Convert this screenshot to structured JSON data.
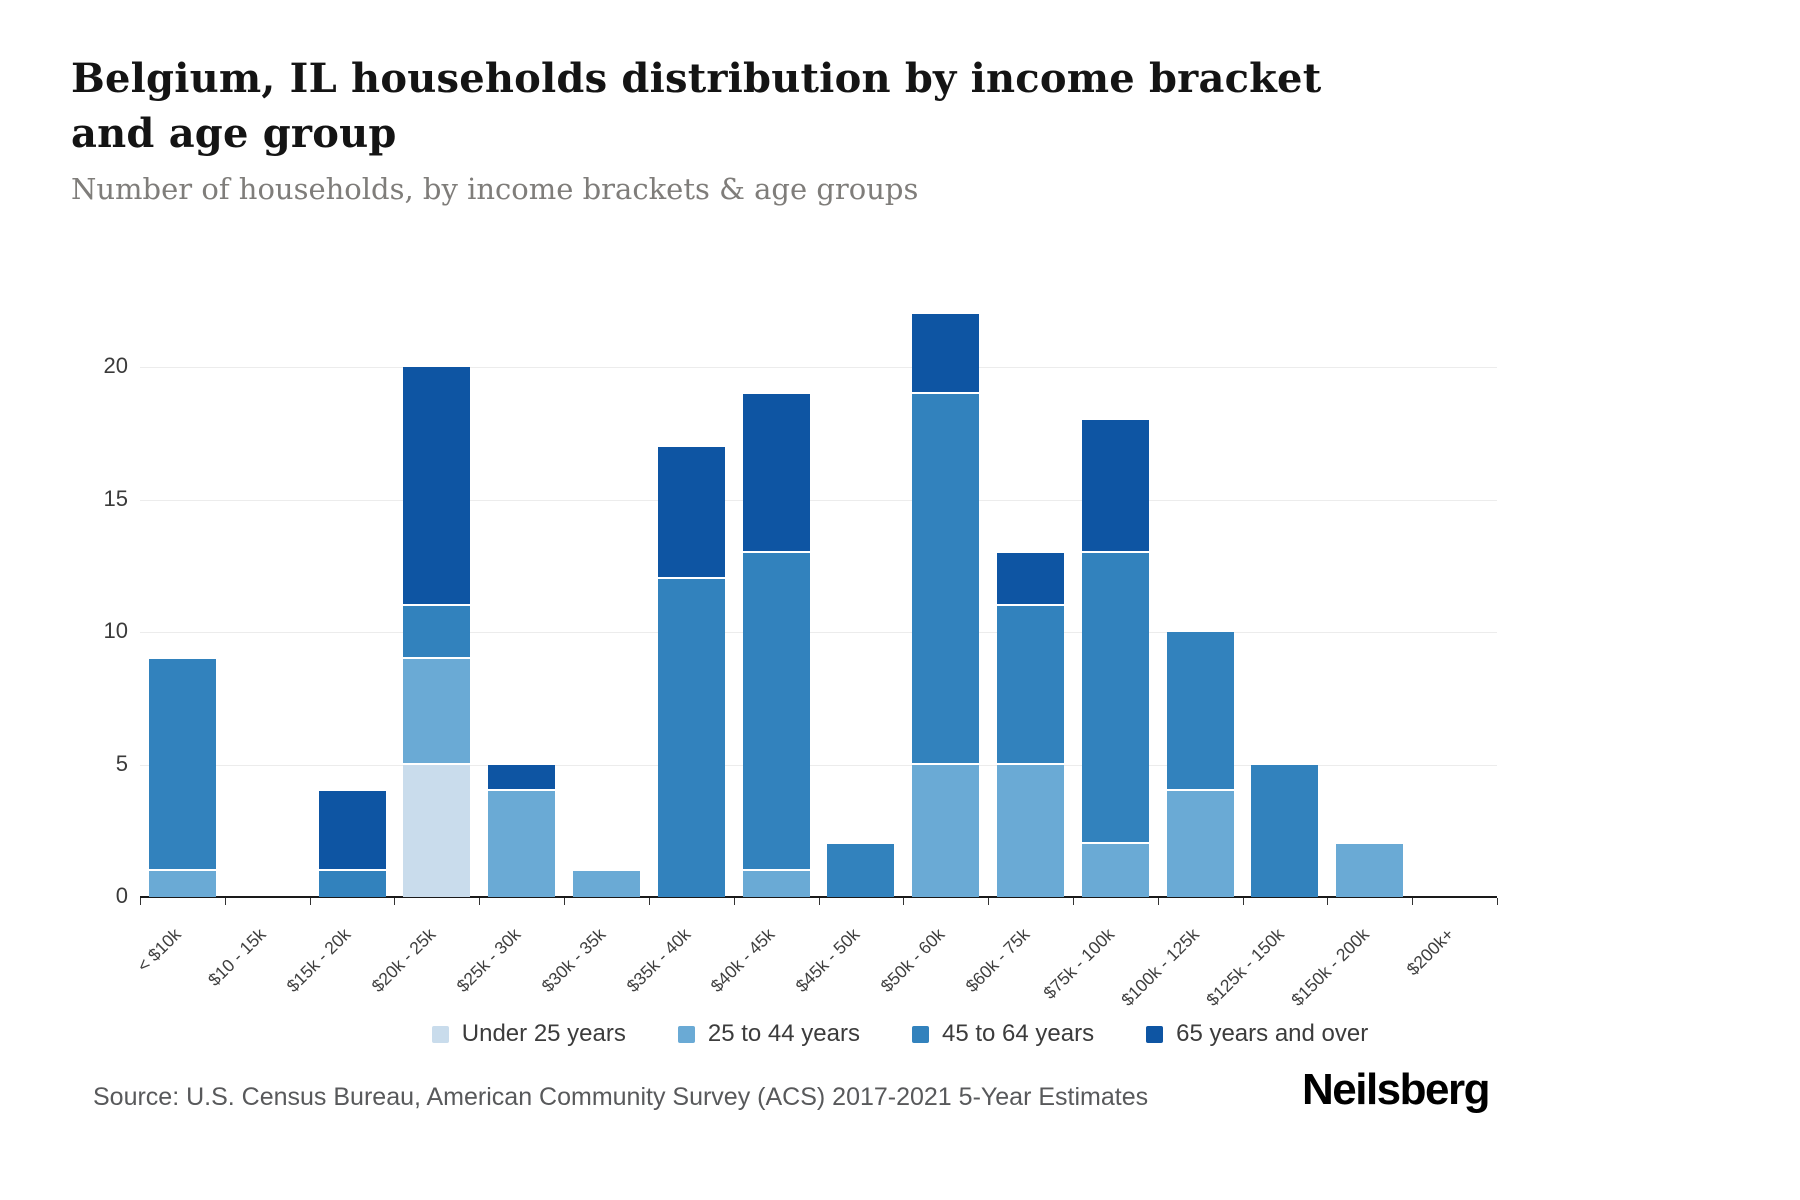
{
  "header": {
    "title": "Belgium, IL households distribution by income bracket and age group",
    "subtitle": "Number of households, by income brackets & age groups"
  },
  "footer": {
    "source": "Source: U.S. Census Bureau, American Community Survey (ACS) 2017-2021 5-Year Estimates",
    "brand": "Neilsberg"
  },
  "chart_data": {
    "type": "bar",
    "stacked": true,
    "title": "Belgium, IL households distribution by income bracket and age group",
    "subtitle": "Number of households, by income brackets & age groups",
    "xlabel": "",
    "ylabel": "",
    "ylim": [
      0,
      22
    ],
    "yticks": [
      0,
      5,
      10,
      15,
      20
    ],
    "grid": true,
    "legend_position": "bottom",
    "categories": [
      "< $10k",
      "$10 - 15k",
      "$15k - 20k",
      "$20k - 25k",
      "$25k - 30k",
      "$30k - 35k",
      "$35k - 40k",
      "$40k - 45k",
      "$45k - 50k",
      "$50k - 60k",
      "$60k - 75k",
      "$75k - 100k",
      "$100k - 125k",
      "$125k - 150k",
      "$150k - 200k",
      "$200k+"
    ],
    "series": [
      {
        "name": "Under 25 years",
        "color": "#c9dcec",
        "values": [
          0,
          0,
          0,
          5,
          0,
          0,
          0,
          0,
          0,
          0,
          0,
          0,
          0,
          0,
          0,
          0
        ]
      },
      {
        "name": "25 to 44 years",
        "color": "#6aaad5",
        "values": [
          1,
          0,
          0,
          4,
          4,
          1,
          0,
          1,
          0,
          5,
          5,
          2,
          4,
          0,
          2,
          0
        ]
      },
      {
        "name": "45 to 64 years",
        "color": "#3282bd",
        "values": [
          8,
          0,
          1,
          2,
          0,
          0,
          12,
          12,
          2,
          14,
          6,
          11,
          6,
          5,
          0,
          0
        ]
      },
      {
        "name": "65 years and over",
        "color": "#0e55a3",
        "values": [
          0,
          0,
          3,
          9,
          1,
          0,
          5,
          6,
          0,
          3,
          2,
          5,
          0,
          0,
          0,
          0
        ]
      }
    ]
  }
}
